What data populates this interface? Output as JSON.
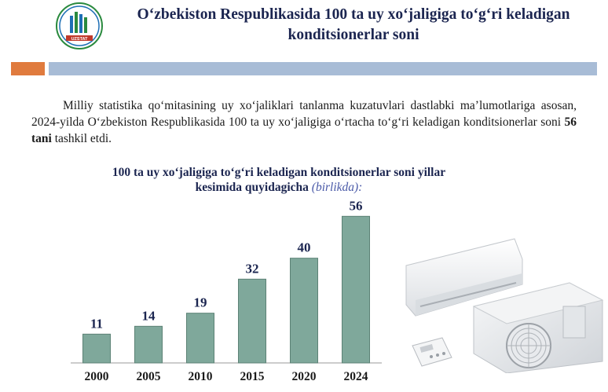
{
  "header": {
    "logo_text": "UZSTAT",
    "title": "O‘zbekiston Respublikasida 100 ta uy xo‘jaligiga to‘g‘ri keladigan konditsionerlar soni"
  },
  "intro": {
    "text_before": "Milliy statistika qo‘mitasining uy xo‘jaliklari tanlanma kuzatuvlari dastlabki ma’lumotlariga asosan, 2024-yilda O‘zbekiston Respublikasida 100 ta uy xo‘jaligiga o‘rtacha to‘g‘ri keladigan konditsionerlar soni ",
    "highlight": "56 tani",
    "text_after": " tashkil etdi."
  },
  "chart_data": {
    "type": "bar",
    "title": "100 ta uy xo‘jaligiga to‘g‘ri keladigan konditsionerlar soni yillar kesimida quyidagicha",
    "unit": "(birlikda):",
    "categories": [
      "2000",
      "2005",
      "2010",
      "2015",
      "2020",
      "2024"
    ],
    "values": [
      11,
      14,
      19,
      32,
      40,
      56
    ],
    "data_labels": [
      "11",
      "14",
      "19",
      "32",
      "40",
      "56"
    ],
    "ylim": [
      0,
      60
    ],
    "grid": false,
    "legend": "none",
    "colors": {
      "bar": "#7fa89b",
      "bar_edge": "#5c8275",
      "label": "#1b2550",
      "axis": "#9a9a9a"
    }
  },
  "colors": {
    "accent_orange": "#e07b3e",
    "accent_blue": "#a8bcd6",
    "title": "#1b2550"
  },
  "illustration": {
    "icon": "air-conditioner-icon"
  }
}
